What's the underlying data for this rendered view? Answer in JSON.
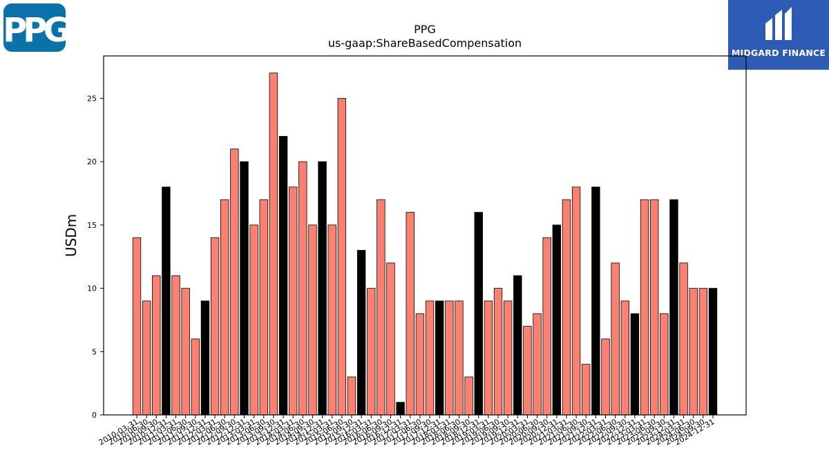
{
  "logos": {
    "left_brand": "PPG",
    "right_brand": "MIDGARD FINANCE"
  },
  "colors": {
    "bar_default": "#fa8072",
    "bar_highlight": "#000000",
    "ppg_blue": "#0a72a8",
    "midgard_blue": "#2d5bb3"
  },
  "chart_data": {
    "type": "bar",
    "title": "PPG",
    "subtitle": "us-gaap:ShareBasedCompensation",
    "ylabel": "USDm",
    "xlabel": "",
    "ylim": [
      0,
      28.35
    ],
    "yticks": [
      0,
      5,
      10,
      15,
      20,
      25
    ],
    "grid": false,
    "categories": [
      "2010-03-31",
      "2010-06-30",
      "2010-09-30",
      "2010-12-31",
      "2011-03-31",
      "2011-06-30",
      "2011-09-30",
      "2011-12-31",
      "2012-03-31",
      "2012-06-30",
      "2012-09-30",
      "2012-12-31",
      "2013-03-31",
      "2013-06-30",
      "2013-09-30",
      "2013-12-31",
      "2014-03-31",
      "2014-06-30",
      "2014-09-30",
      "2014-12-31",
      "2015-03-31",
      "2015-06-30",
      "2015-09-30",
      "2015-12-31",
      "2016-03-31",
      "2016-06-30",
      "2016-09-30",
      "2016-12-31",
      "2017-03-31",
      "2017-06-30",
      "2017-09-30",
      "2017-12-31",
      "2018-03-31",
      "2018-06-30",
      "2018-09-30",
      "2018-12-31",
      "2019-03-31",
      "2019-06-30",
      "2019-09-30",
      "2019-12-31",
      "2020-03-31",
      "2020-06-30",
      "2020-09-30",
      "2020-12-31",
      "2021-03-31",
      "2021-06-30",
      "2021-09-30",
      "2021-12-31",
      "2022-03-31",
      "2022-06-30",
      "2022-09-30",
      "2022-12-31",
      "2023-03-31",
      "2023-06-30",
      "2023-09-30",
      "2023-12-31",
      "2024-03-31",
      "2024-06-30",
      "2024-09-30",
      "2024-12-31"
    ],
    "values": [
      14,
      9,
      11,
      18,
      11,
      10,
      6,
      9,
      14,
      17,
      21,
      20,
      15,
      17,
      27,
      22,
      18,
      20,
      15,
      20,
      15,
      25,
      3,
      13,
      10,
      17,
      12,
      1,
      16,
      8,
      9,
      9,
      9,
      9,
      3,
      16,
      9,
      10,
      9,
      11,
      7,
      8,
      14,
      15,
      17,
      18,
      4,
      18,
      6,
      12,
      9,
      8,
      17,
      17,
      8,
      17,
      12,
      10,
      10,
      10
    ],
    "highlight_categories": [
      "2010-12-31",
      "2011-12-31",
      "2012-12-31",
      "2013-12-31",
      "2014-12-31",
      "2015-12-31",
      "2016-12-31",
      "2017-12-31",
      "2018-12-31",
      "2019-12-31",
      "2020-12-31",
      "2021-12-31",
      "2022-12-31",
      "2023-12-31",
      "2024-12-31"
    ]
  }
}
